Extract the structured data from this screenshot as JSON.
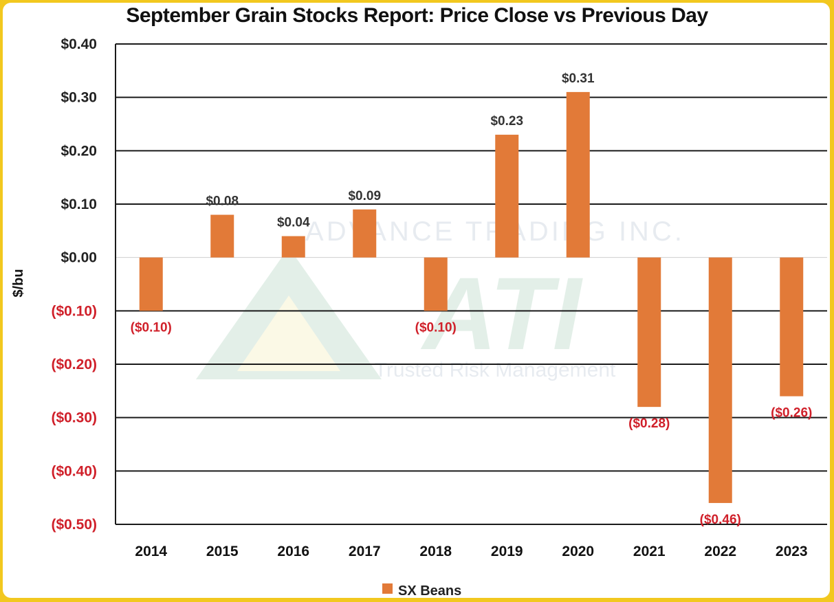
{
  "chart_data": {
    "type": "bar",
    "title": "September Grain Stocks Report: Price Close vs Previous Day",
    "ylabel": "$/bu",
    "xlabel": "",
    "categories": [
      "2014",
      "2015",
      "2016",
      "2017",
      "2018",
      "2019",
      "2020",
      "2021",
      "2022",
      "2023"
    ],
    "series": [
      {
        "name": "SX Beans",
        "values": [
          -0.1,
          0.08,
          0.04,
          0.09,
          -0.1,
          0.23,
          0.31,
          -0.28,
          -0.46,
          -0.26
        ],
        "labels": [
          "($0.10)",
          "$0.08",
          "$0.04",
          "$0.09",
          "($0.10)",
          "$0.23",
          "$0.31",
          "($0.28)",
          "($0.46)",
          "($0.26)"
        ]
      }
    ],
    "ylim": [
      -0.5,
      0.4
    ],
    "yticks": [
      0.4,
      0.3,
      0.2,
      0.1,
      0.0,
      -0.1,
      -0.2,
      -0.3,
      -0.4,
      -0.5
    ],
    "ytick_labels": [
      "$0.40",
      "$0.30",
      "$0.20",
      "$0.10",
      "$0.00",
      "($0.10)",
      "($0.20)",
      "($0.30)",
      "($0.40)",
      "($0.50)"
    ],
    "grid": true,
    "legend": "bottom",
    "colors": {
      "bar": "#e27a38",
      "positive_text": "#222222",
      "negative_text": "#d0202a",
      "grid": "#1a1a1a",
      "frame": "#f2c81f"
    },
    "watermark": {
      "line1": "ADVANCE TRADING INC.",
      "logo": "ATI",
      "line2": "Trusted Risk Management"
    }
  }
}
